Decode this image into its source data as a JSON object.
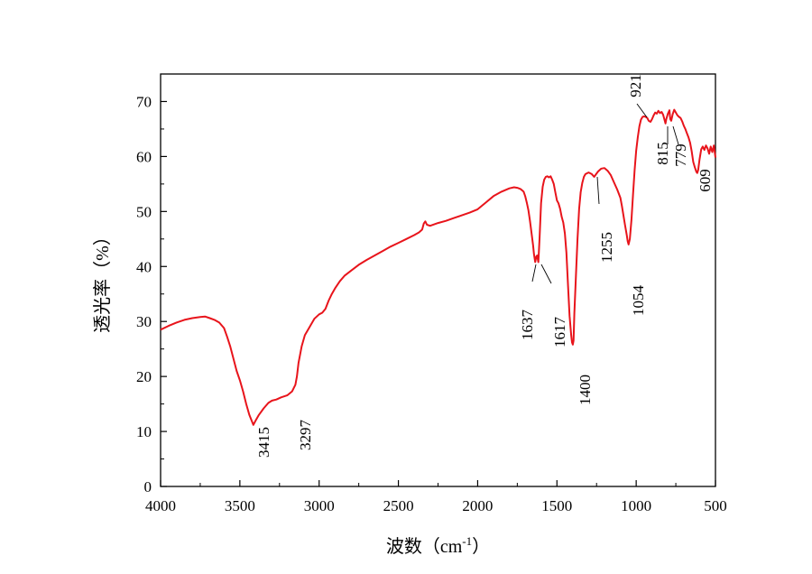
{
  "chart_data": {
    "type": "line",
    "title": "",
    "xlabel": "波数（cm",
    "xlabel_sup": "-1",
    "xlabel_end": "）",
    "ylabel": "透光率（%）",
    "xlim": [
      4000,
      500
    ],
    "ylim": [
      0,
      75
    ],
    "x_reversed": true,
    "x_ticks": [
      4000,
      3500,
      3000,
      2500,
      2000,
      1500,
      1000,
      500
    ],
    "y_ticks": [
      0,
      10,
      20,
      30,
      40,
      50,
      60,
      70
    ],
    "x_tick_labels": [
      "4000",
      "3500",
      "3000",
      "2500",
      "2000",
      "1500",
      "1000",
      "500"
    ],
    "y_tick_labels": [
      "0",
      "10",
      "20",
      "30",
      "40",
      "50",
      "60",
      "70"
    ],
    "grid": false,
    "legend": "none",
    "series": [
      {
        "color": "#e8141b",
        "x": [
          4000,
          3950,
          3900,
          3850,
          3800,
          3750,
          3720,
          3690,
          3660,
          3630,
          3600,
          3580,
          3560,
          3540,
          3520,
          3500,
          3480,
          3460,
          3440,
          3415,
          3400,
          3380,
          3350,
          3320,
          3297,
          3270,
          3240,
          3200,
          3170,
          3150,
          3140,
          3130,
          3110,
          3090,
          3060,
          3030,
          3000,
          2980,
          2960,
          2940,
          2920,
          2900,
          2870,
          2840,
          2800,
          2750,
          2700,
          2650,
          2600,
          2550,
          2500,
          2450,
          2400,
          2370,
          2350,
          2340,
          2330,
          2320,
          2300,
          2250,
          2200,
          2150,
          2100,
          2050,
          2000,
          1950,
          1900,
          1850,
          1800,
          1770,
          1750,
          1730,
          1710,
          1700,
          1690,
          1680,
          1670,
          1660,
          1650,
          1645,
          1637,
          1630,
          1625,
          1617,
          1610,
          1600,
          1590,
          1580,
          1570,
          1560,
          1550,
          1540,
          1530,
          1520,
          1510,
          1500,
          1490,
          1480,
          1470,
          1460,
          1450,
          1440,
          1430,
          1420,
          1410,
          1405,
          1400,
          1395,
          1390,
          1380,
          1370,
          1360,
          1350,
          1340,
          1330,
          1320,
          1300,
          1280,
          1265,
          1255,
          1240,
          1220,
          1200,
          1180,
          1160,
          1140,
          1120,
          1100,
          1090,
          1080,
          1070,
          1060,
          1054,
          1048,
          1040,
          1030,
          1020,
          1010,
          1000,
          990,
          980,
          970,
          960,
          950,
          940,
          930,
          921,
          910,
          900,
          890,
          880,
          870,
          860,
          850,
          840,
          830,
          820,
          815,
          810,
          800,
          790,
          785,
          779,
          770,
          760,
          750,
          740,
          730,
          720,
          710,
          700,
          690,
          680,
          670,
          660,
          650,
          640,
          630,
          620,
          615,
          609,
          600,
          590,
          580,
          570,
          560,
          550,
          540,
          530,
          520,
          510,
          500
        ],
        "y": [
          28.5,
          29.2,
          29.8,
          30.3,
          30.6,
          30.8,
          30.9,
          30.6,
          30.3,
          29.8,
          28.8,
          27.2,
          25.4,
          23.2,
          21.0,
          19.3,
          17.3,
          15.0,
          13.0,
          11.2,
          12.0,
          13.0,
          14.2,
          15.2,
          15.6,
          15.8,
          16.2,
          16.6,
          17.3,
          18.5,
          20.0,
          22.5,
          25.5,
          27.5,
          29.0,
          30.5,
          31.3,
          31.6,
          32.3,
          33.8,
          35.0,
          36.0,
          37.3,
          38.3,
          39.2,
          40.3,
          41.2,
          42.0,
          42.8,
          43.6,
          44.3,
          45.0,
          45.7,
          46.2,
          46.7,
          47.8,
          48.2,
          47.6,
          47.4,
          47.9,
          48.3,
          48.8,
          49.3,
          49.8,
          50.4,
          51.6,
          52.8,
          53.6,
          54.2,
          54.4,
          54.3,
          54.1,
          53.6,
          52.8,
          51.6,
          50.2,
          48.3,
          46.0,
          43.8,
          42.3,
          40.8,
          41.8,
          42.0,
          40.8,
          45.0,
          51.5,
          54.5,
          55.8,
          56.3,
          56.4,
          56.2,
          56.4,
          55.8,
          55.0,
          53.5,
          52.0,
          51.5,
          50.5,
          49.0,
          48.0,
          46.0,
          42.5,
          36.5,
          31.0,
          27.5,
          26.2,
          25.8,
          26.5,
          31.5,
          38.5,
          45.0,
          50.5,
          53.5,
          55.2,
          56.3,
          56.8,
          57.1,
          56.8,
          56.3,
          56.7,
          57.3,
          57.8,
          57.9,
          57.4,
          56.6,
          55.3,
          54.0,
          52.5,
          51.0,
          49.2,
          47.5,
          45.8,
          44.6,
          44.0,
          45.0,
          48.5,
          53.0,
          57.5,
          61.0,
          63.5,
          65.5,
          66.7,
          67.2,
          67.3,
          67.2,
          67.0,
          66.5,
          66.3,
          66.8,
          67.5,
          68.0,
          67.8,
          68.3,
          67.9,
          68.1,
          67.6,
          66.5,
          66.0,
          66.8,
          67.8,
          68.4,
          66.8,
          66.5,
          67.7,
          68.5,
          68.0,
          67.5,
          67.2,
          67.0,
          66.4,
          65.6,
          65.0,
          64.2,
          63.5,
          62.5,
          61.0,
          59.0,
          58.0,
          57.2,
          57.0,
          57.5,
          59.5,
          61.3,
          61.8,
          61.2,
          62.0,
          61.5,
          60.5,
          61.8,
          60.8,
          62.0,
          59.8
        ]
      }
    ],
    "annotations": [
      {
        "label": "3415",
        "x": 3415,
        "y": 11.2
      },
      {
        "label": "3297",
        "x": 3297,
        "y": 15.6
      },
      {
        "label": "1637",
        "x": 1637,
        "y": 40.8
      },
      {
        "label": "1617",
        "x": 1617,
        "y": 40.8
      },
      {
        "label": "1400",
        "x": 1400,
        "y": 25.8
      },
      {
        "label": "1255",
        "x": 1255,
        "y": 56.7
      },
      {
        "label": "1054",
        "x": 1054,
        "y": 44.0
      },
      {
        "label": "921",
        "x": 921,
        "y": 66.5
      },
      {
        "label": "815",
        "x": 815,
        "y": 66.0
      },
      {
        "label": "779",
        "x": 779,
        "y": 66.5
      },
      {
        "label": "609",
        "x": 609,
        "y": 57.0
      }
    ]
  }
}
